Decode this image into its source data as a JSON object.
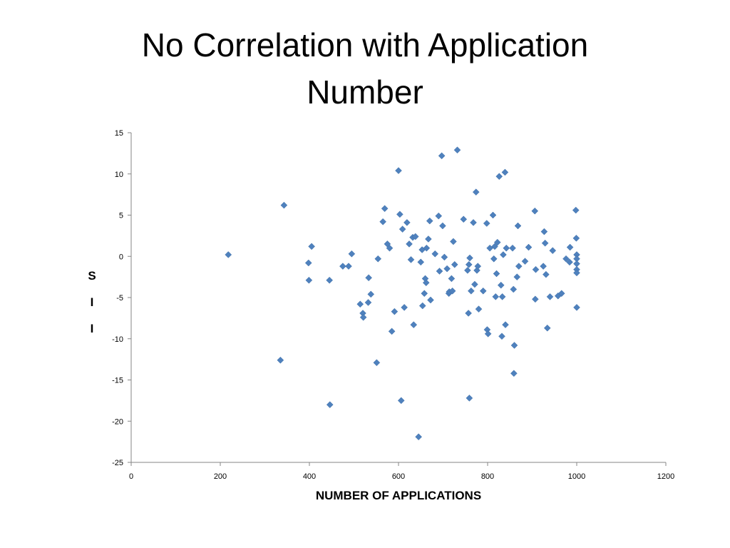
{
  "title_lines": [
    "No Correlation with Application",
    "Number"
  ],
  "chart_data": {
    "type": "scatter",
    "title": "No Correlation with Application Number",
    "xlabel": "NUMBER OF APPLICATIONS",
    "ylabel_letters": [
      "S",
      "I",
      "I"
    ],
    "xlim": [
      0,
      1200
    ],
    "ylim": [
      -25,
      15
    ],
    "xticks": [
      "0",
      "200",
      "400",
      "600",
      "800",
      "1000",
      "1200"
    ],
    "yticks": [
      "15",
      "10",
      "5",
      "0",
      "-5",
      "-10",
      "-15",
      "-20",
      "-25"
    ],
    "grid": false,
    "legend": "none",
    "marker": "diamond",
    "color": "#4f81bd",
    "points": [
      [
        218,
        0.2
      ],
      [
        335,
        -12.6
      ],
      [
        343,
        6.2
      ],
      [
        398,
        -0.8
      ],
      [
        399,
        -2.9
      ],
      [
        405,
        1.2
      ],
      [
        445,
        -2.9
      ],
      [
        446,
        -18.0
      ],
      [
        475,
        -1.2
      ],
      [
        488,
        -1.2
      ],
      [
        495,
        0.3
      ],
      [
        514,
        -5.8
      ],
      [
        520,
        -6.9
      ],
      [
        521,
        -7.4
      ],
      [
        532,
        -5.6
      ],
      [
        533,
        -2.6
      ],
      [
        538,
        -4.6
      ],
      [
        551,
        -12.9
      ],
      [
        554,
        -0.3
      ],
      [
        565,
        4.2
      ],
      [
        569,
        5.8
      ],
      [
        575,
        1.5
      ],
      [
        580,
        1.0
      ],
      [
        585,
        -9.1
      ],
      [
        591,
        -6.7
      ],
      [
        600,
        10.4
      ],
      [
        603,
        5.1
      ],
      [
        606,
        -17.5
      ],
      [
        609,
        3.3
      ],
      [
        613,
        -6.2
      ],
      [
        619,
        4.1
      ],
      [
        624,
        1.5
      ],
      [
        628,
        -0.4
      ],
      [
        632,
        2.3
      ],
      [
        634,
        -8.3
      ],
      [
        638,
        2.4
      ],
      [
        645,
        -21.9
      ],
      [
        650,
        -0.7
      ],
      [
        653,
        0.8
      ],
      [
        654,
        -6.0
      ],
      [
        658,
        -4.5
      ],
      [
        660,
        -2.7
      ],
      [
        662,
        -3.2
      ],
      [
        663,
        1.0
      ],
      [
        667,
        2.1
      ],
      [
        670,
        4.3
      ],
      [
        672,
        -5.3
      ],
      [
        682,
        0.3
      ],
      [
        690,
        4.9
      ],
      [
        692,
        -1.8
      ],
      [
        697,
        12.2
      ],
      [
        699,
        3.7
      ],
      [
        703,
        -0.1
      ],
      [
        709,
        -1.5
      ],
      [
        713,
        -4.5
      ],
      [
        714,
        -4.3
      ],
      [
        719,
        -2.7
      ],
      [
        721,
        -4.2
      ],
      [
        723,
        1.8
      ],
      [
        726,
        -1.0
      ],
      [
        732,
        12.9
      ],
      [
        746,
        4.5
      ],
      [
        755,
        -1.7
      ],
      [
        757,
        -6.9
      ],
      [
        758,
        -1.0
      ],
      [
        759,
        -17.2
      ],
      [
        760,
        -0.2
      ],
      [
        763,
        -4.2
      ],
      [
        768,
        4.1
      ],
      [
        771,
        -3.4
      ],
      [
        774,
        7.8
      ],
      [
        776,
        -1.7
      ],
      [
        778,
        -1.2
      ],
      [
        780,
        -6.4
      ],
      [
        790,
        -4.2
      ],
      [
        798,
        4.0
      ],
      [
        799,
        -8.9
      ],
      [
        801,
        -9.4
      ],
      [
        805,
        1.0
      ],
      [
        812,
        5.0
      ],
      [
        814,
        -0.3
      ],
      [
        816,
        1.2
      ],
      [
        818,
        -4.9
      ],
      [
        820,
        -2.1
      ],
      [
        822,
        1.7
      ],
      [
        826,
        9.7
      ],
      [
        830,
        -3.5
      ],
      [
        832,
        -9.7
      ],
      [
        833,
        -4.9
      ],
      [
        835,
        0.2
      ],
      [
        839,
        10.2
      ],
      [
        840,
        -8.3
      ],
      [
        842,
        1.0
      ],
      [
        856,
        1.0
      ],
      [
        858,
        -4.0
      ],
      [
        859,
        -14.2
      ],
      [
        860,
        -10.8
      ],
      [
        866,
        -2.5
      ],
      [
        868,
        3.7
      ],
      [
        870,
        -1.2
      ],
      [
        884,
        -0.6
      ],
      [
        892,
        1.1
      ],
      [
        906,
        5.5
      ],
      [
        907,
        -5.2
      ],
      [
        908,
        -1.6
      ],
      [
        925,
        -1.2
      ],
      [
        927,
        3.0
      ],
      [
        929,
        1.6
      ],
      [
        931,
        -2.2
      ],
      [
        934,
        -8.7
      ],
      [
        940,
        -4.9
      ],
      [
        946,
        0.7
      ],
      [
        958,
        -4.8
      ],
      [
        966,
        -4.5
      ],
      [
        976,
        -0.3
      ],
      [
        984,
        -0.7
      ],
      [
        985,
        1.1
      ],
      [
        998,
        5.6
      ],
      [
        999,
        2.2
      ],
      [
        1000,
        0.2
      ],
      [
        1000,
        -0.3
      ],
      [
        1000,
        -0.9
      ],
      [
        1000,
        -1.6
      ],
      [
        1000,
        -2.0
      ],
      [
        1000,
        -6.2
      ]
    ]
  }
}
